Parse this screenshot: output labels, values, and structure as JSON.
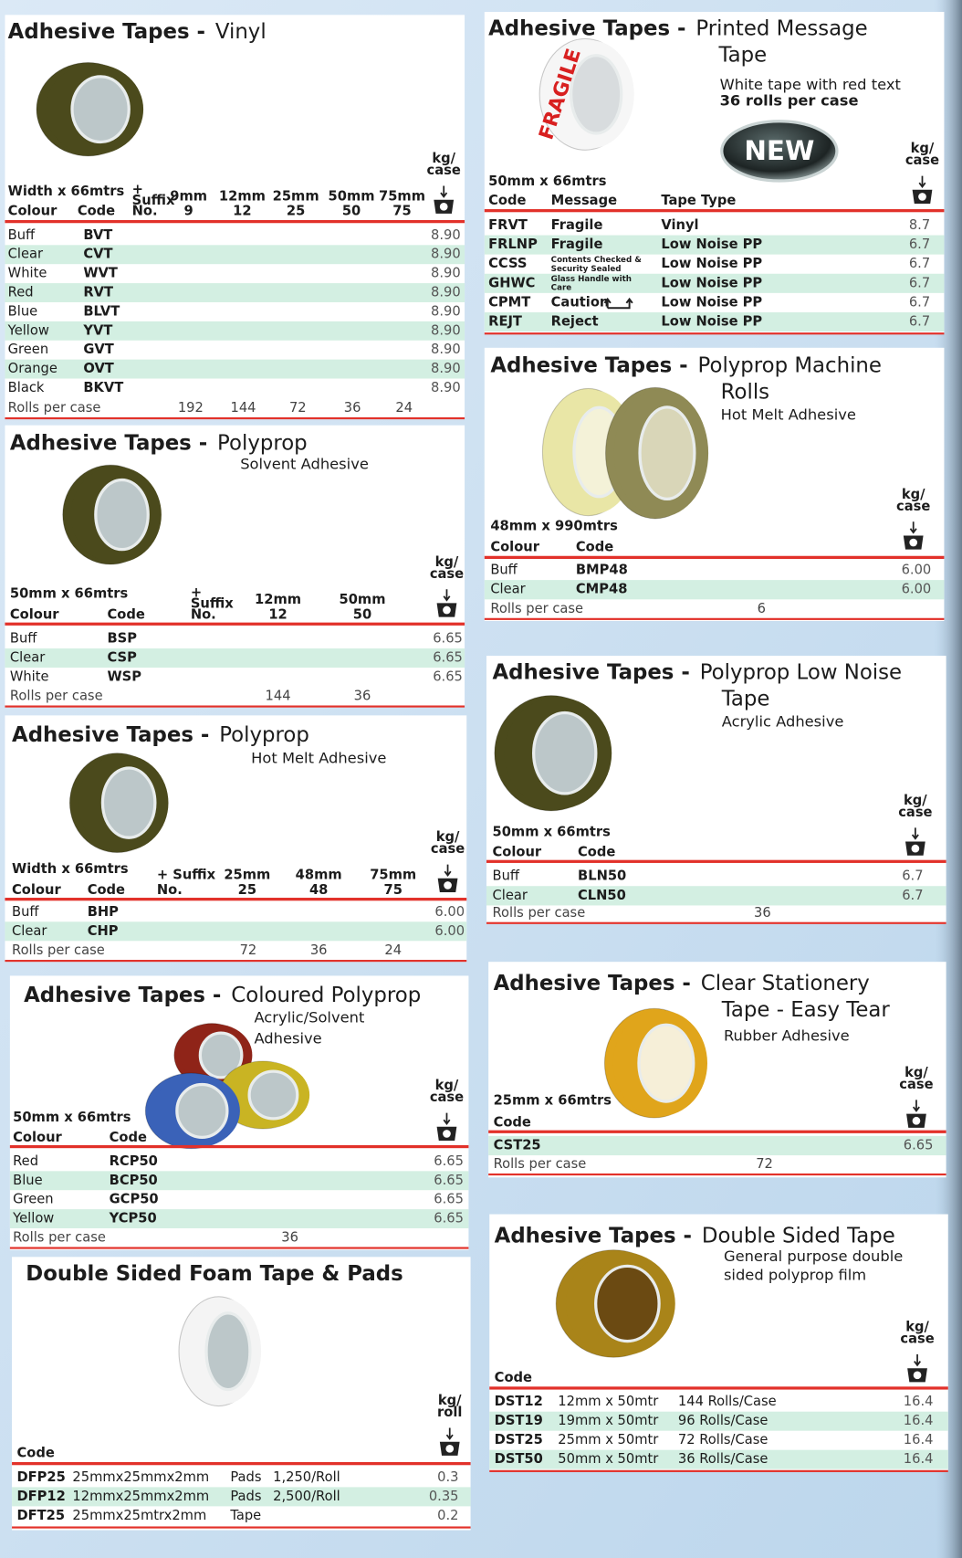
{
  "panels": [
    {
      "title": "Adhesive Tapes -",
      "subtitle": [
        "Vinyl"
      ],
      "spec": "Width x 66mtrs",
      "header": [
        [
          "Colour"
        ],
        [
          "Code"
        ],
        [
          "+",
          "Suffix",
          "No."
        ],
        [
          "9mm",
          "9"
        ],
        [
          "12mm",
          "12"
        ],
        [
          "25mm",
          "25"
        ],
        [
          "50mm",
          "50"
        ],
        [
          "75mm",
          "75"
        ]
      ],
      "unit": [
        "kg/",
        "case"
      ],
      "rows": [
        [
          "Buff",
          "BVT",
          "8.90"
        ],
        [
          "Clear",
          "CVT",
          "8.90"
        ],
        [
          "White",
          "WVT",
          "8.90"
        ],
        [
          "Red",
          "RVT",
          "8.90"
        ],
        [
          "Blue",
          "BLVT",
          "8.90"
        ],
        [
          "Yellow",
          "YVT",
          "8.90"
        ],
        [
          "Green",
          "GVT",
          "8.90"
        ],
        [
          "Orange",
          "OVT",
          "8.90"
        ],
        [
          "Black",
          "BKVT",
          "8.90"
        ]
      ],
      "footer": [
        "Rolls per case",
        "192",
        "144",
        "72",
        "36",
        "24"
      ]
    },
    {
      "title": "Adhesive Tapes -",
      "subtitle": [
        "Polyprop"
      ],
      "notes": [
        "Solvent Adhesive"
      ],
      "spec": "50mm x 66mtrs",
      "header": [
        [
          "Colour"
        ],
        [
          "Code"
        ],
        [
          "+",
          "Suffix",
          "No."
        ],
        [
          "12mm",
          "12"
        ],
        [
          "50mm",
          "50"
        ]
      ],
      "unit": [
        "kg/",
        "case"
      ],
      "rows": [
        [
          "Buff",
          "BSP",
          "6.65"
        ],
        [
          "Clear",
          "CSP",
          "6.65"
        ],
        [
          "White",
          "WSP",
          "6.65"
        ]
      ],
      "footer": [
        "Rolls per case",
        "144",
        "36"
      ]
    },
    {
      "title": "Adhesive Tapes -",
      "subtitle": [
        "Polyprop"
      ],
      "notes": [
        "Hot Melt Adhesive"
      ],
      "spec": "Width x 66mtrs",
      "header": [
        [
          "Colour"
        ],
        [
          "Code"
        ],
        [
          "+ Suffix",
          "No."
        ],
        [
          "25mm",
          "25"
        ],
        [
          "48mm",
          "48"
        ],
        [
          "75mm",
          "75"
        ]
      ],
      "unit": [
        "kg/",
        "case"
      ],
      "rows": [
        [
          "Buff",
          "BHP",
          "6.00"
        ],
        [
          "Clear",
          "CHP",
          "6.00"
        ]
      ],
      "footer": [
        "Rolls per case",
        "72",
        "36",
        "24"
      ]
    },
    {
      "title": "Adhesive Tapes -",
      "subtitle": [
        "Coloured Polyprop"
      ],
      "notes": [
        "Acrylic/Solvent",
        "Adhesive"
      ],
      "spec": "50mm x 66mtrs",
      "header": [
        [
          "Colour"
        ],
        [
          "Code"
        ]
      ],
      "unit": [
        "kg/",
        "case"
      ],
      "rows": [
        [
          "Red",
          "RCP50",
          "6.65"
        ],
        [
          "Blue",
          "BCP50",
          "6.65"
        ],
        [
          "Green",
          "GCP50",
          "6.65"
        ],
        [
          "Yellow",
          "YCP50",
          "6.65"
        ]
      ],
      "footer": [
        "Rolls per case",
        "36"
      ]
    },
    {
      "title": "Double Sided Foam Tape & Pads",
      "header": [
        [
          "Code"
        ]
      ],
      "unit": [
        "kg/",
        "roll"
      ],
      "rows": [
        [
          "DFP25",
          "25mmx25mmx2mm",
          "Pads",
          "1,250/Roll",
          "0.3"
        ],
        [
          "DFP12",
          "12mmx25mmx2mm",
          "Pads",
          "2,500/Roll",
          "0.35"
        ],
        [
          "DFT25",
          "25mmx25mtrx2mm",
          "Tape",
          "0.2"
        ]
      ]
    },
    {
      "title": "Adhesive Tapes -",
      "subtitle": [
        "Printed Message",
        "Tape"
      ],
      "notes": [
        "White tape with red text",
        "36 rolls per case"
      ],
      "badge": "NEW",
      "roll_text": "FRAGILE",
      "spec": "50mm x 66mtrs",
      "header": [
        [
          "Code"
        ],
        [
          "Message"
        ],
        [
          "Tape Type"
        ]
      ],
      "unit": [
        "kg/",
        "case"
      ],
      "rows": [
        [
          "FRVT",
          "Fragile",
          "Vinyl",
          "8.7"
        ],
        [
          "FRLNP",
          "Fragile",
          "Low Noise PP",
          "6.7"
        ],
        [
          "CCSS",
          "Contents Checked & Security Sealed",
          "Low Noise PP",
          "6.7"
        ],
        [
          "GHWC",
          "Glass Handle with Care",
          "Low Noise PP",
          "6.7"
        ],
        [
          "CPMT",
          "Caution",
          "Low Noise PP",
          "6.7"
        ],
        [
          "REJT",
          "Reject",
          "Low Noise PP",
          "6.7"
        ]
      ]
    },
    {
      "title": "Adhesive Tapes -",
      "subtitle": [
        "Polyprop Machine",
        "Rolls"
      ],
      "notes": [
        "Hot Melt Adhesive"
      ],
      "spec": "48mm x 990mtrs",
      "header": [
        [
          "Colour"
        ],
        [
          "Code"
        ]
      ],
      "unit": [
        "kg/",
        "case"
      ],
      "rows": [
        [
          "Buff",
          "BMP48",
          "6.00"
        ],
        [
          "Clear",
          "CMP48",
          "6.00"
        ]
      ],
      "footer": [
        "Rolls per case",
        "6"
      ]
    },
    {
      "title": "Adhesive Tapes -",
      "subtitle": [
        "Polyprop Low Noise",
        "Tape"
      ],
      "notes": [
        "Acrylic Adhesive"
      ],
      "spec": "50mm x 66mtrs",
      "header": [
        [
          "Colour"
        ],
        [
          "Code"
        ]
      ],
      "unit": [
        "kg/",
        "case"
      ],
      "rows": [
        [
          "Buff",
          "BLN50",
          "6.7"
        ],
        [
          "Clear",
          "CLN50",
          "6.7"
        ]
      ],
      "footer": [
        "Rolls per case",
        "36"
      ]
    },
    {
      "title": "Adhesive Tapes -",
      "subtitle": [
        "Clear Stationery",
        "Tape - Easy Tear"
      ],
      "notes": [
        "Rubber Adhesive"
      ],
      "spec": "25mm x 66mtrs",
      "header": [
        [
          "Code"
        ]
      ],
      "unit": [
        "kg/",
        "case"
      ],
      "rows": [
        [
          "CST25",
          "6.65"
        ]
      ],
      "footer": [
        "Rolls per case",
        "72"
      ]
    },
    {
      "title": "Adhesive Tapes -",
      "subtitle": [
        "Double Sided Tape"
      ],
      "notes": [
        "General purpose double",
        "sided polyprop film"
      ],
      "header": [
        [
          "Code"
        ]
      ],
      "unit": [
        "kg/",
        "case"
      ],
      "rows": [
        [
          "DST12",
          "12mm x 50mtr",
          "144 Rolls/Case",
          "16.4"
        ],
        [
          "DST19",
          "19mm x 50mtr",
          "96 Rolls/Case",
          "16.4"
        ],
        [
          "DST25",
          "25mm x 50mtr",
          "72 Rolls/Case",
          "16.4"
        ],
        [
          "DST50",
          "50mm x 50mtr",
          "36 Rolls/Case",
          "16.4"
        ]
      ]
    }
  ]
}
